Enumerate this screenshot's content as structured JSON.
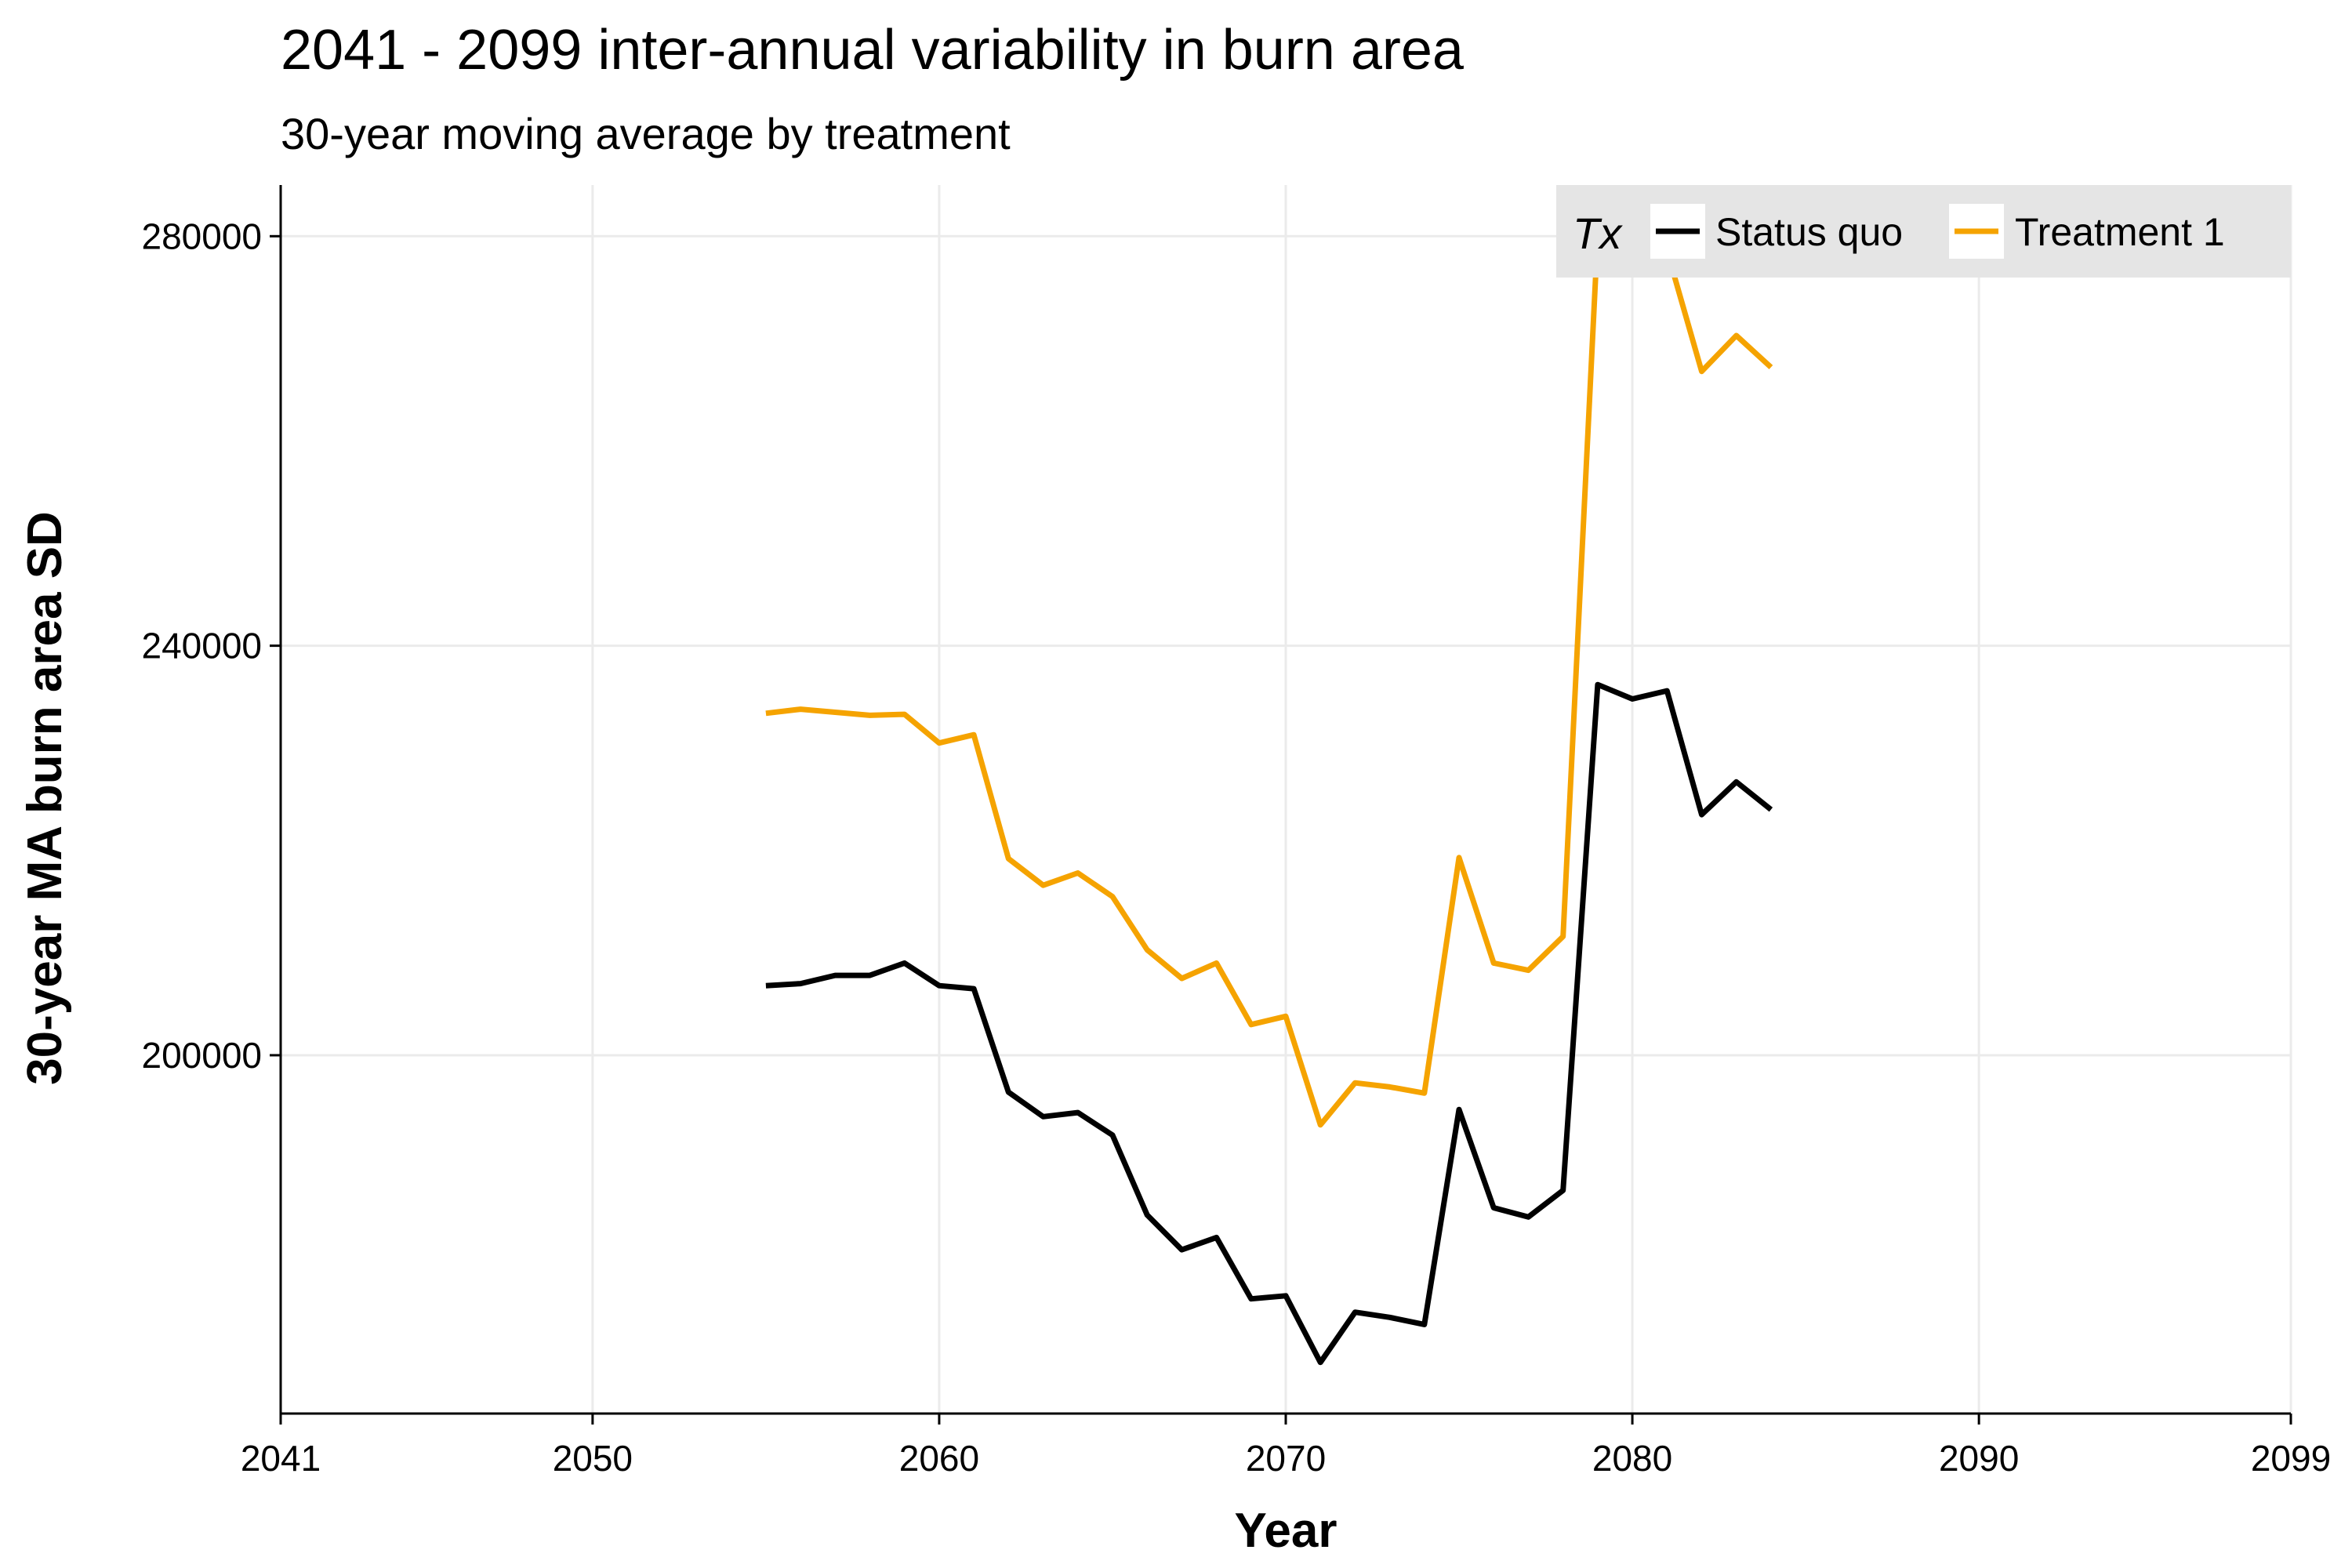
{
  "chart_data": {
    "type": "line",
    "title": "2041 - 2099 inter-annual variability in burn area",
    "subtitle": "30-year moving average by treatment",
    "xlabel": "Year",
    "ylabel": "30-year MA burn area SD",
    "xlim": [
      2041,
      2099
    ],
    "ylim": [
      165000,
      285000
    ],
    "x_ticks": [
      2041,
      2050,
      2060,
      2070,
      2080,
      2090,
      2099
    ],
    "y_ticks": [
      200000,
      240000,
      280000
    ],
    "grid": true,
    "legend": {
      "title": "Tx",
      "placement": "top-right"
    },
    "x": [
      2055,
      2056,
      2057,
      2058,
      2059,
      2060,
      2061,
      2062,
      2063,
      2064,
      2065,
      2066,
      2067,
      2068,
      2069,
      2070,
      2071,
      2072,
      2073,
      2074,
      2075,
      2076,
      2077,
      2078,
      2079,
      2080,
      2081,
      2082,
      2083,
      2084
    ],
    "series": [
      {
        "name": "Status quo",
        "color": "#000000",
        "values": [
          206800,
          207000,
          207800,
          207800,
          209000,
          206800,
          206500,
          196400,
          194000,
          194400,
          192200,
          184400,
          181000,
          182200,
          176200,
          176500,
          170000,
          174900,
          174400,
          173700,
          194700,
          185100,
          184200,
          186800,
          236200,
          234800,
          235600,
          223500,
          226700,
          224000
        ]
      },
      {
        "name": "Treatment 1",
        "color": "#F5A300",
        "values": [
          233400,
          233800,
          233500,
          233200,
          233300,
          230500,
          231300,
          219200,
          216600,
          217800,
          215500,
          210300,
          207500,
          209000,
          203000,
          203800,
          193200,
          197300,
          196900,
          196300,
          219300,
          209000,
          208300,
          211600,
          280200,
          277800,
          278600,
          266800,
          270300,
          267200
        ]
      }
    ]
  }
}
